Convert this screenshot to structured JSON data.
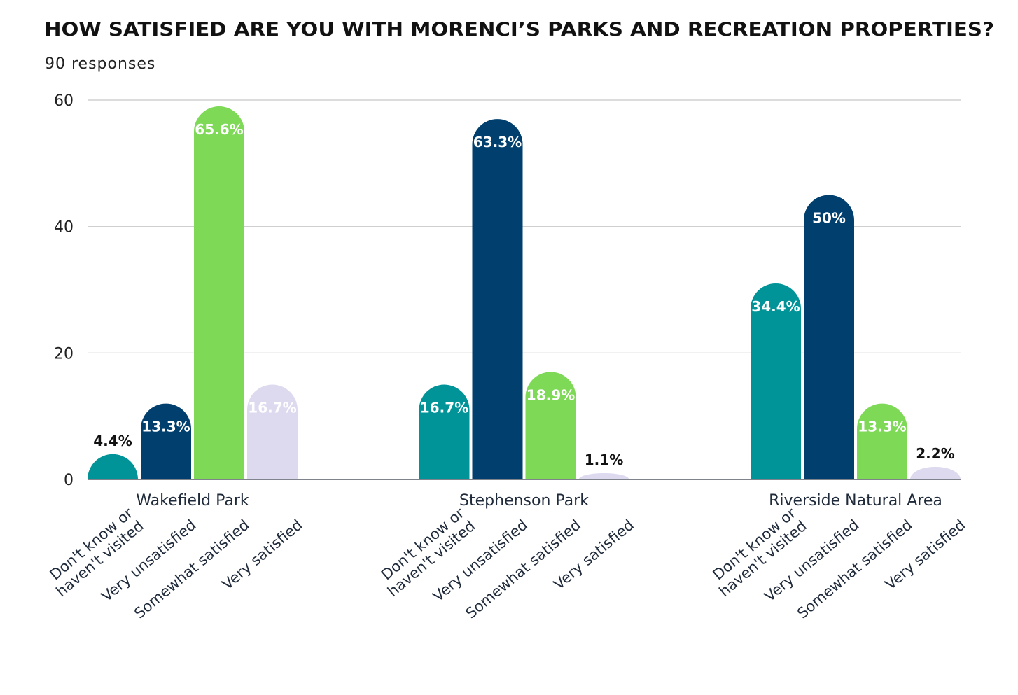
{
  "chart_data": {
    "type": "bar",
    "title": "HOW SATISFIED ARE YOU WITH MORENCI’S PARKS AND RECREATION PROPERTIES?",
    "subtitle": "90 responses",
    "ylim": [
      0,
      60
    ],
    "yticks": [
      "0",
      "20",
      "40",
      "60"
    ],
    "ytick_values": [
      0,
      20,
      40,
      60
    ],
    "grid": true,
    "groups": [
      "Wakefield Park",
      "Stephenson Park",
      "Riverside Natural Area"
    ],
    "series": [
      {
        "name": "Don't know or haven't visited",
        "name_lines": [
          "Don't know or",
          "haven't visited"
        ],
        "color": "#009499",
        "values": [
          4,
          15,
          31
        ],
        "labels": [
          "4.4%",
          "16.7%",
          "34.4%"
        ]
      },
      {
        "name": "Very unsatisfied",
        "name_lines": [
          "Very unsatisfied"
        ],
        "color": "#003f6e",
        "values": [
          12,
          57,
          45
        ],
        "labels": [
          "13.3%",
          "63.3%",
          "50%"
        ]
      },
      {
        "name": "Somewhat satisfied",
        "name_lines": [
          "Somewhat satisfied"
        ],
        "color": "#7ed957",
        "values": [
          59,
          17,
          12
        ],
        "labels": [
          "65.6%",
          "18.9%",
          "13.3%"
        ]
      },
      {
        "name": "Very satisfied",
        "name_lines": [
          "Very satisfied"
        ],
        "color": "#dddaf0",
        "values": [
          15,
          1,
          2
        ],
        "labels": [
          "16.7%",
          "1.1%",
          "2.2%"
        ]
      }
    ]
  }
}
